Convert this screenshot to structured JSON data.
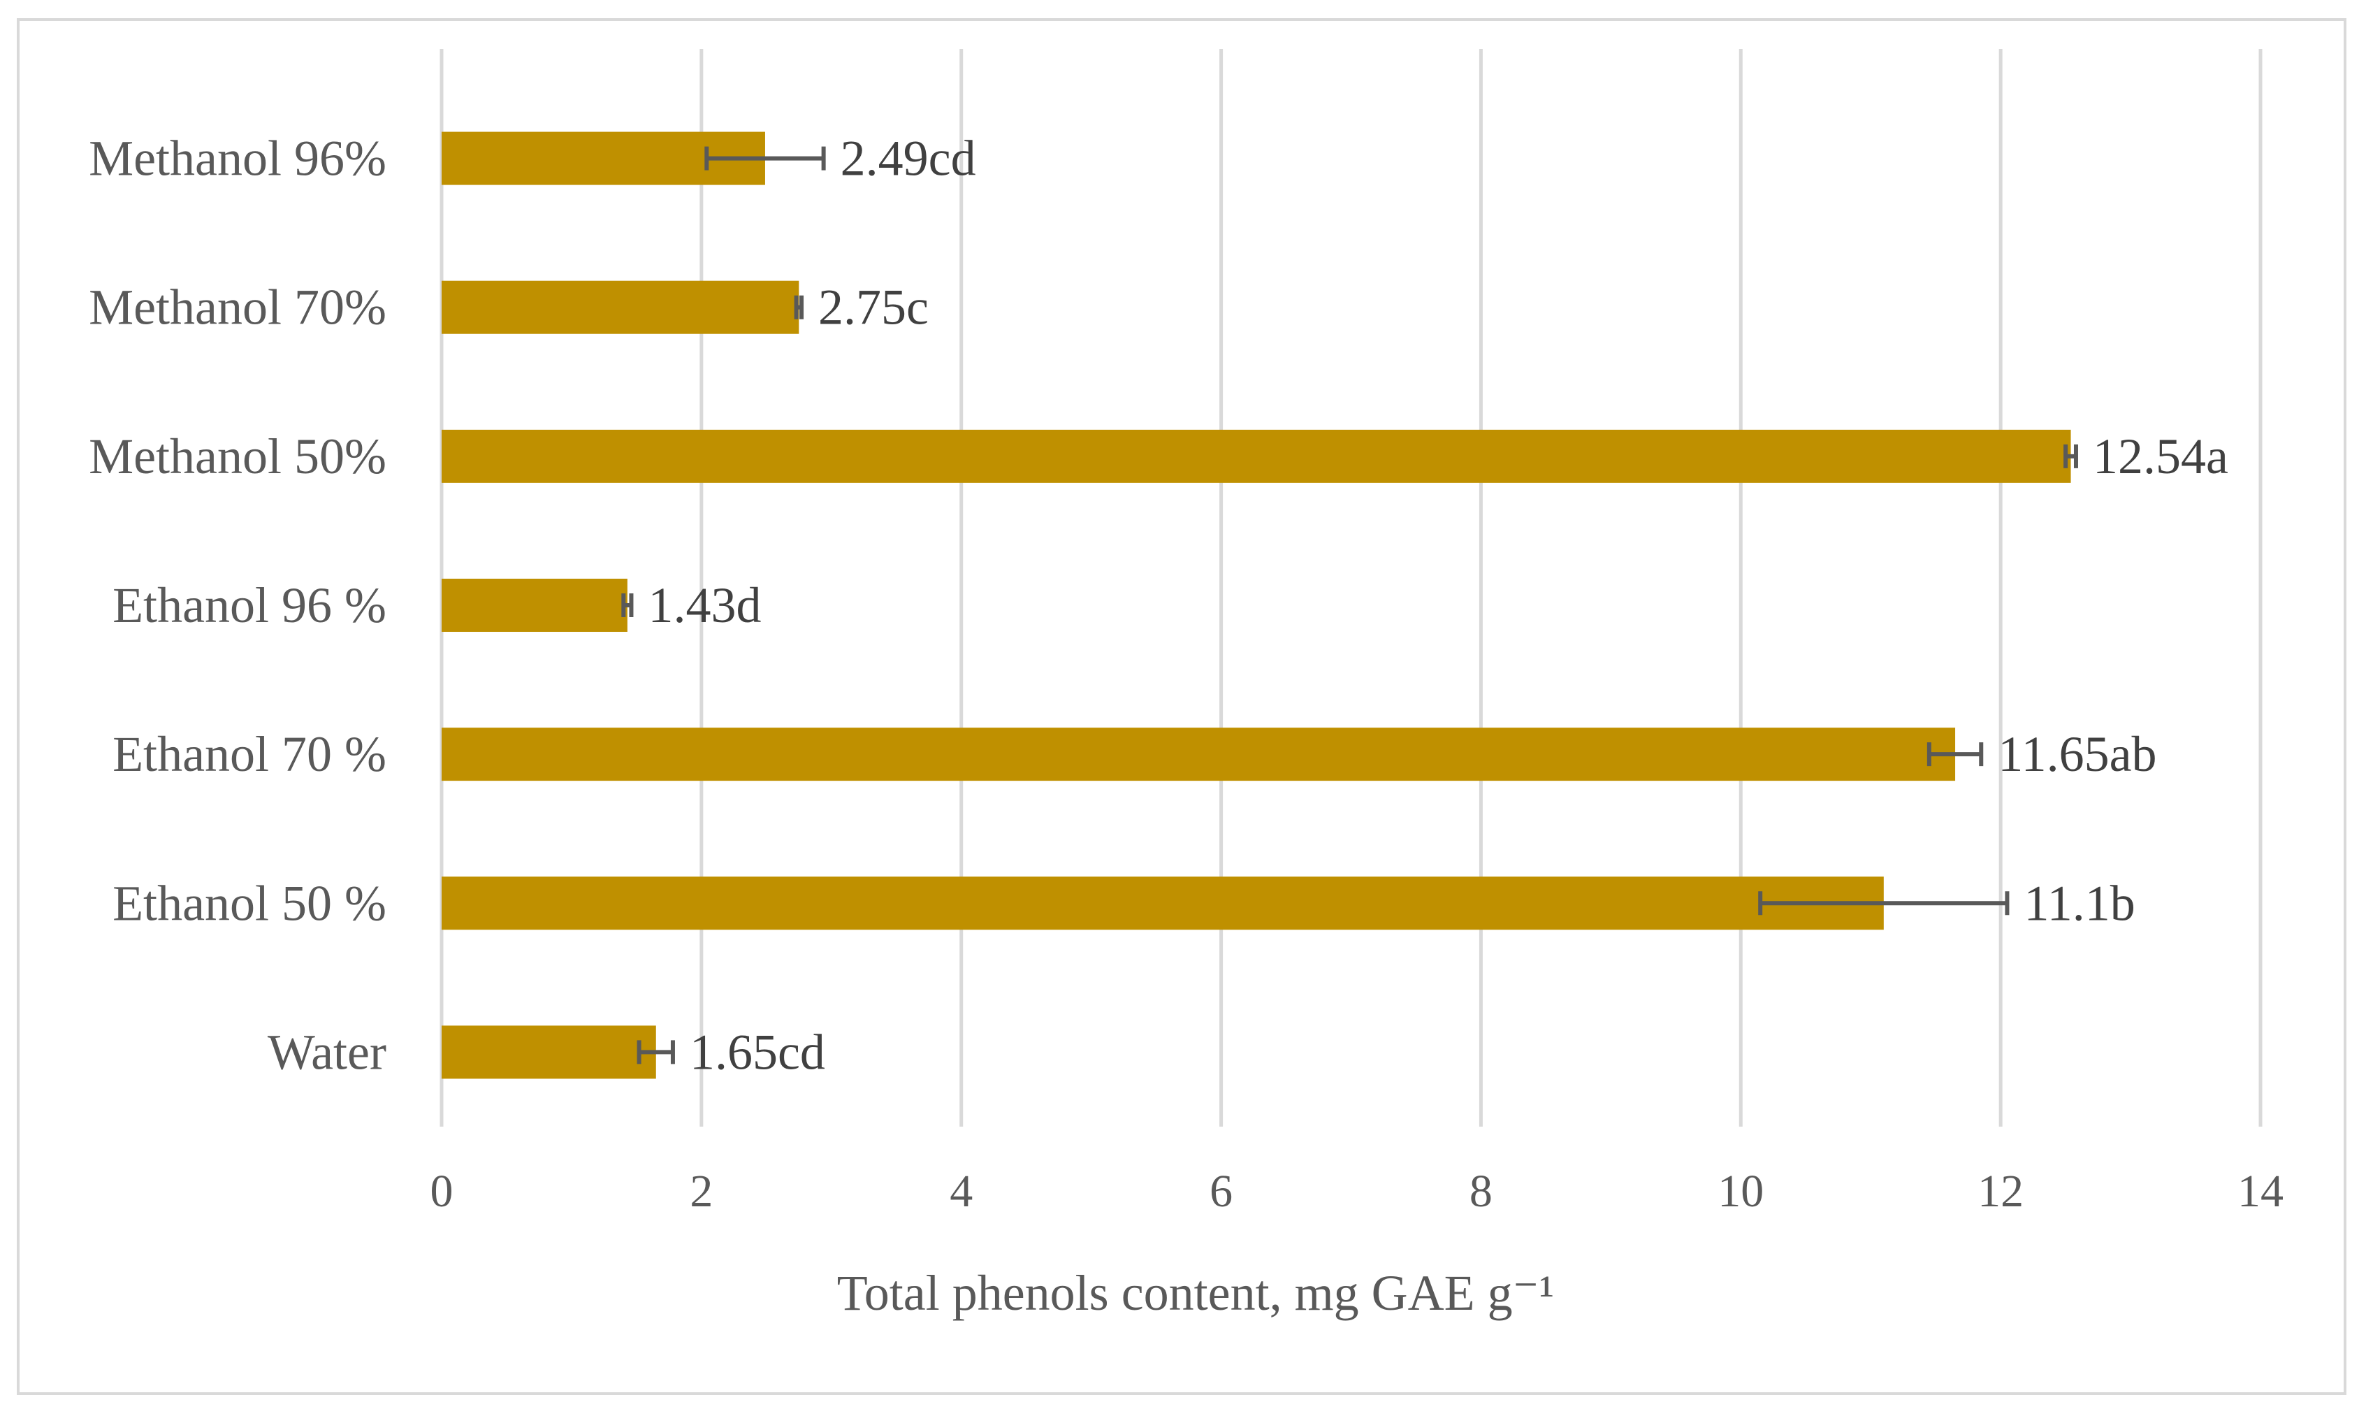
{
  "chart_data": {
    "type": "bar",
    "orientation": "horizontal",
    "categories": [
      "Methanol 96%",
      "Methanol 70%",
      "Methanol 50%",
      "Ethanol 96 %",
      "Ethanol 70 %",
      "Ethanol 50 %",
      "Water"
    ],
    "values": [
      2.49,
      2.75,
      12.54,
      1.43,
      11.65,
      11.1,
      1.65
    ],
    "errors": [
      0.45,
      0.02,
      0.04,
      0.03,
      0.2,
      0.95,
      0.13
    ],
    "data_labels": [
      "2.49cd",
      "2.75c",
      "12.54a",
      "1.43d",
      "11.65ab",
      "11.1b",
      "1.65cd"
    ],
    "xlabel": "Total phenols content, mg GAE g⁻¹",
    "ylabel": "",
    "xlim": [
      0,
      14
    ],
    "xticks": [
      0,
      2,
      4,
      6,
      8,
      10,
      12,
      14
    ],
    "grid": true,
    "legend": "none",
    "colors": {
      "bar": "#bf9000",
      "error_bar": "#595959",
      "grid": "#d9d9d9",
      "text": "#595959",
      "frame": "#d9d9d9"
    }
  }
}
